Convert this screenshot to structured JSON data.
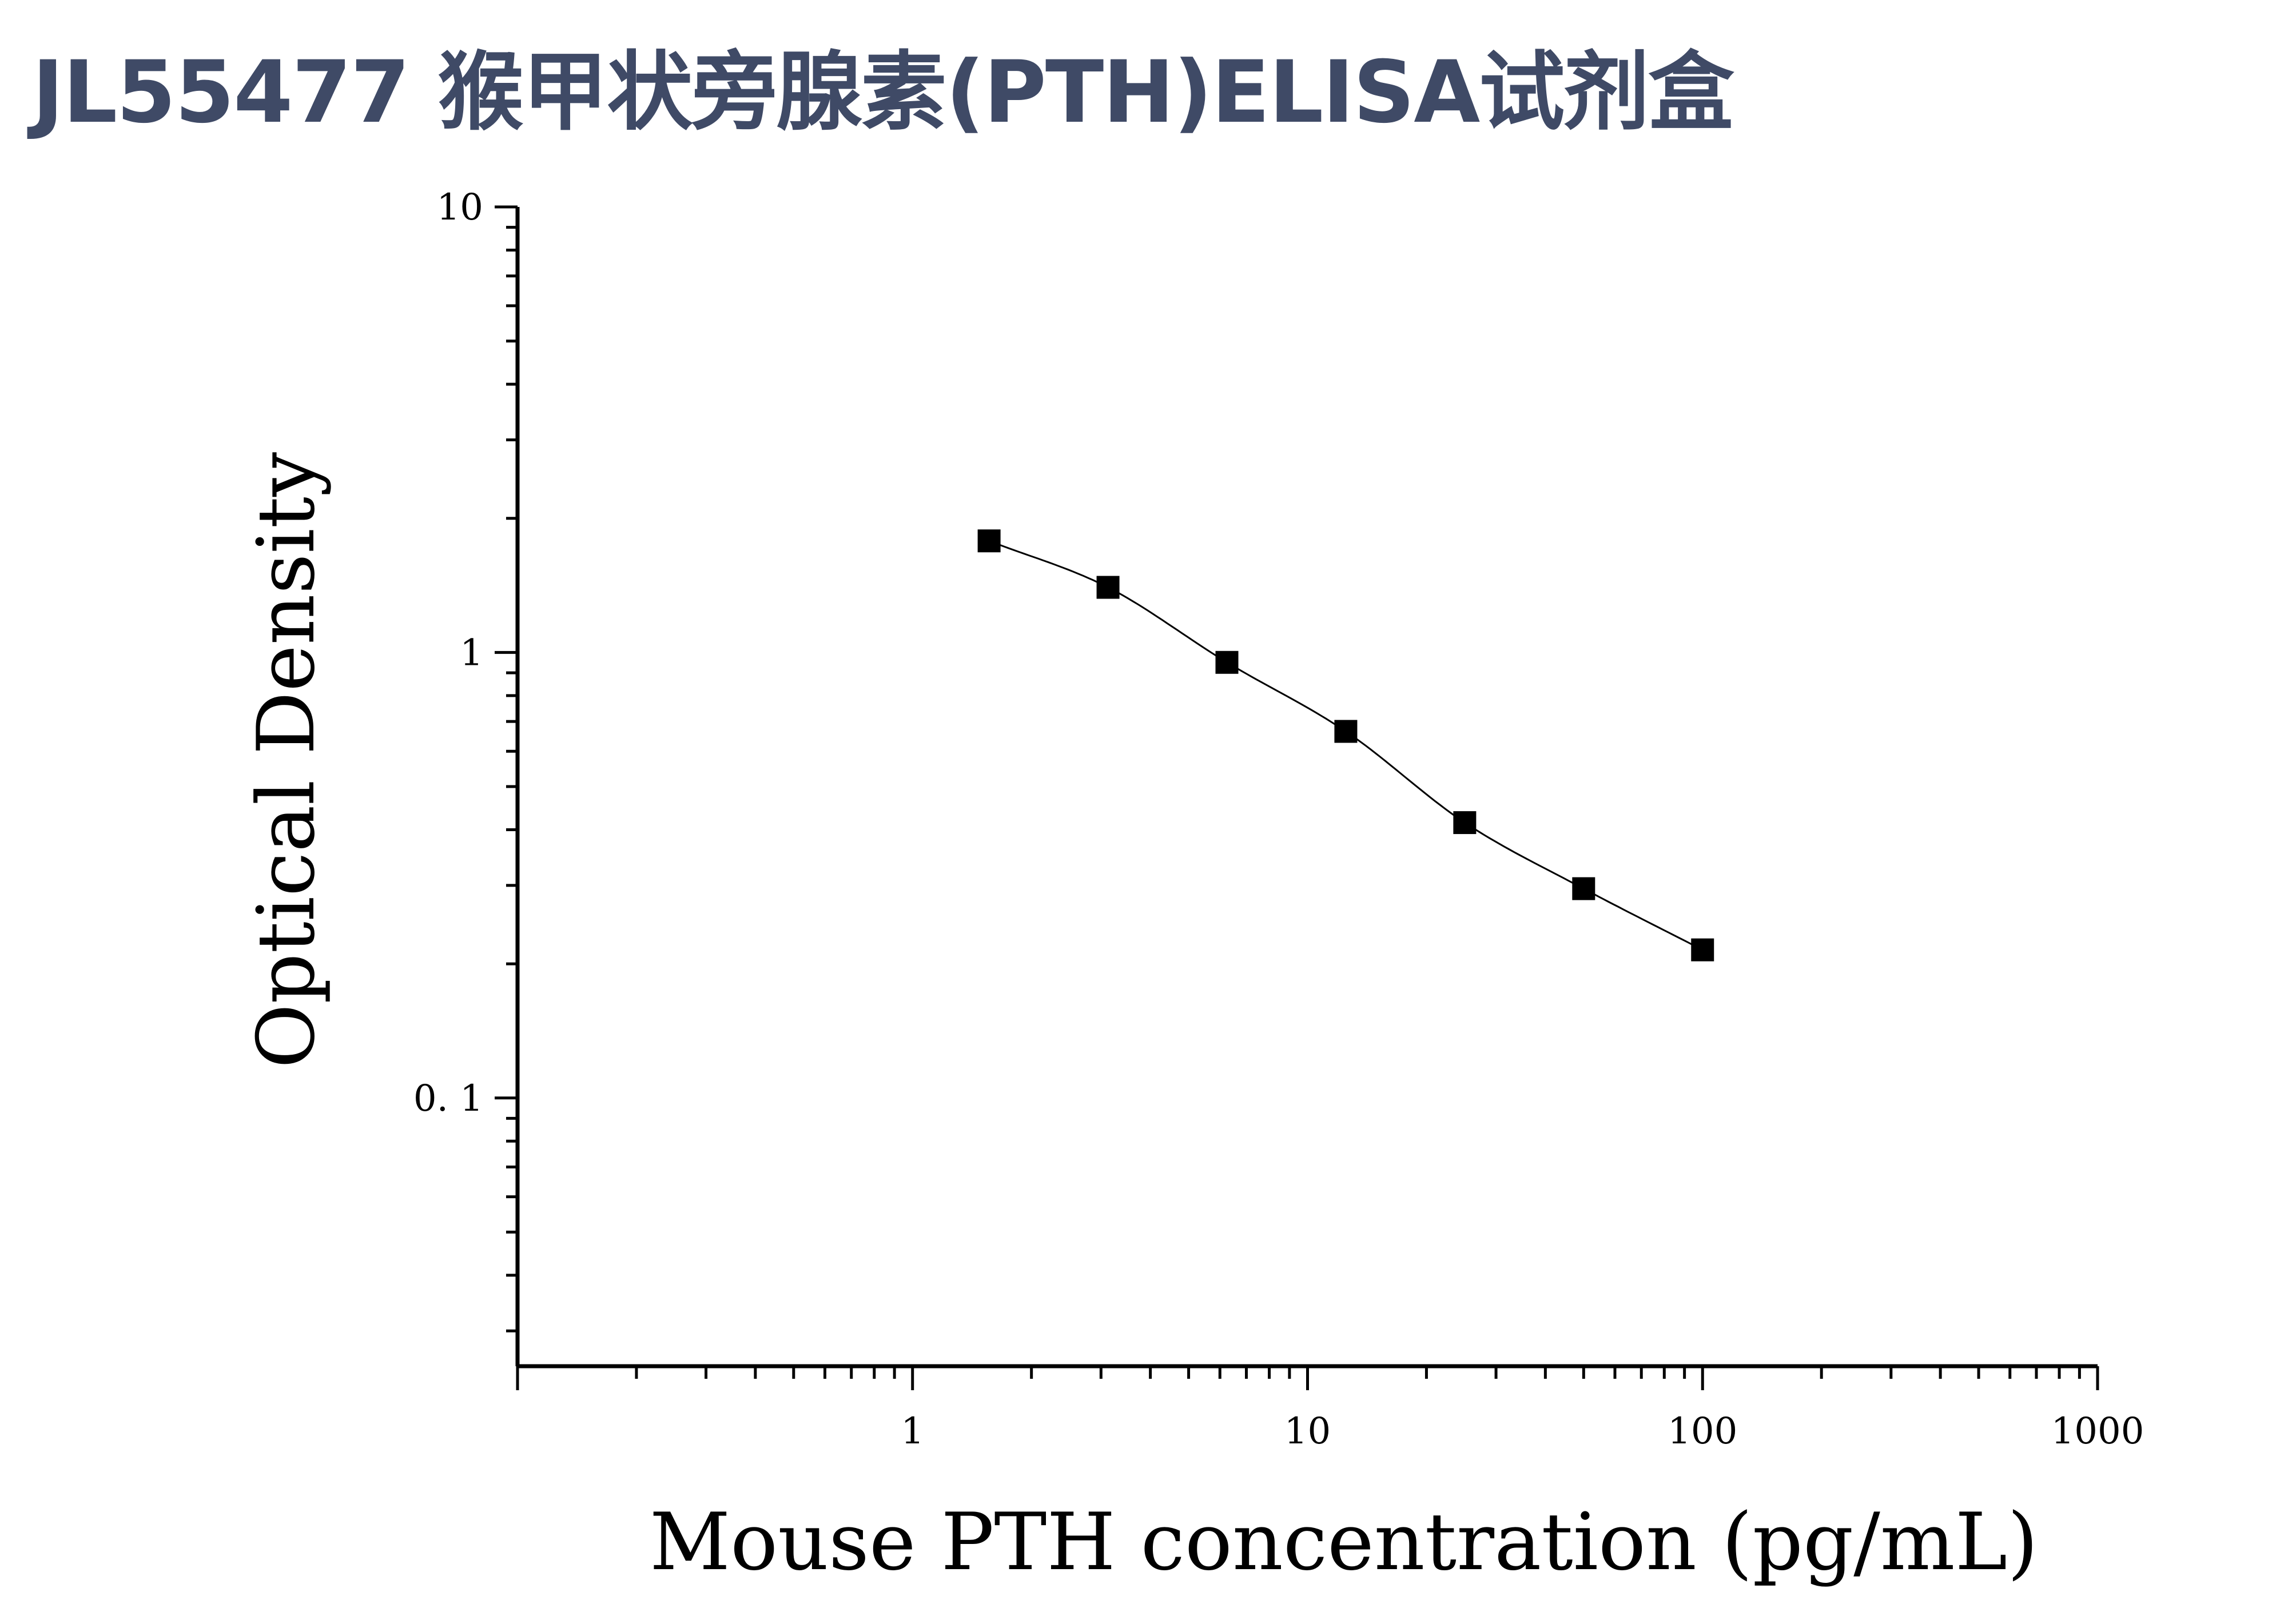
{
  "page": {
    "title": "JL55477 猴甲状旁腺素(PTH)ELISA试剂盒"
  },
  "chart_data": {
    "type": "scatter",
    "title": "",
    "xlabel": "Mouse PTH concentration (pg/mL)",
    "ylabel": "Optical Density",
    "xscale": "log",
    "yscale": "log",
    "xlim": [
      0.1,
      1000
    ],
    "ylim": [
      0.025,
      10
    ],
    "x_ticks": [
      1,
      10,
      100,
      1000
    ],
    "x_tick_labels": [
      "1",
      "10",
      "100",
      "1000"
    ],
    "y_ticks": [
      0.1,
      1,
      10
    ],
    "y_tick_labels": [
      "0. 1",
      "1",
      "10"
    ],
    "grid": false,
    "legend": "none",
    "marker": "square",
    "fit_line": "smooth curve through points",
    "series": [
      {
        "x": [
          1.5625,
          3.125,
          6.25,
          12.5,
          25,
          50,
          100
        ],
        "y": [
          1.78,
          1.4,
          0.95,
          0.665,
          0.415,
          0.295,
          0.215
        ]
      }
    ],
    "colors": {
      "marker": "#000000",
      "line": "#000000",
      "axis": "#000000"
    }
  }
}
